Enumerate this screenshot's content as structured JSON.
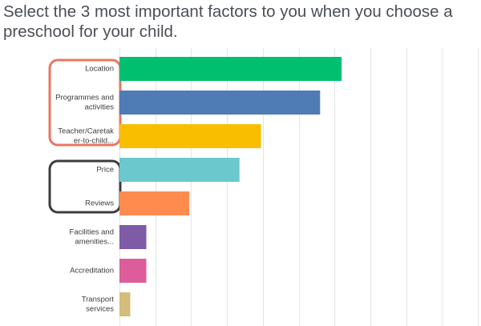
{
  "question": {
    "title": "Select the 3 most important factors to you when you choose a preschool for your child."
  },
  "chart_data": {
    "type": "bar",
    "orientation": "horizontal",
    "title": "Select the 3 most important factors to you when you choose a preschool for your child.",
    "xlim": [
      0,
      100
    ],
    "grid": true,
    "categories": [
      [
        "Location"
      ],
      [
        "Programmes and",
        "activities"
      ],
      [
        "Teacher/Caretak",
        "er-to-child..."
      ],
      [
        "Price"
      ],
      [
        "Reviews"
      ],
      [
        "Facilities and",
        "amenities..."
      ],
      [
        "Accreditation"
      ],
      [
        "Transport",
        "services"
      ]
    ],
    "values": [
      62,
      56,
      39.5,
      33.5,
      19.5,
      7.5,
      7.5,
      3
    ],
    "colors": [
      "#00bf6f",
      "#507cb6",
      "#f9be00",
      "#6bc8cd",
      "#ff8b4f",
      "#7d5ba6",
      "#dd5d9a",
      "#d3bd7a"
    ],
    "highlight_groups": [
      {
        "name": "orange-outline",
        "color": "#e87760",
        "categories": [
          0,
          1,
          2
        ]
      },
      {
        "name": "dark-outline",
        "color": "#3a3c3f",
        "categories": [
          3,
          4
        ]
      }
    ]
  }
}
